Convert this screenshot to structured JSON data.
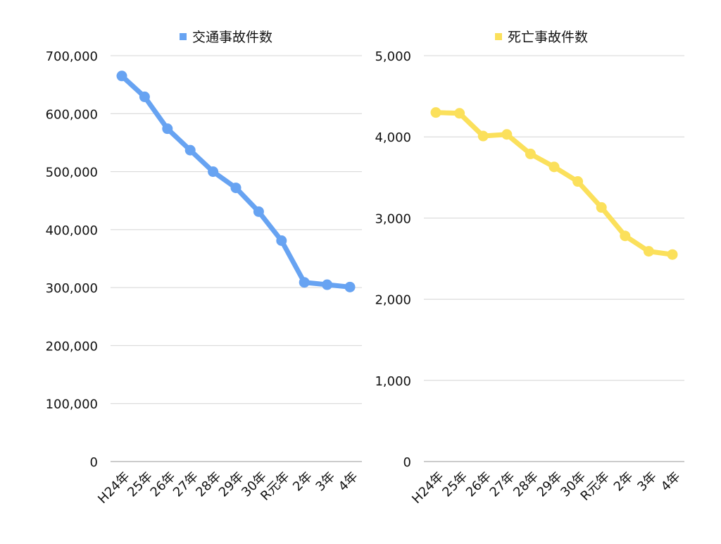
{
  "chart_data": [
    {
      "type": "line",
      "categories": [
        "H24年",
        "25年",
        "26年",
        "27年",
        "28年",
        "29年",
        "30年",
        "R元年",
        "2年",
        "3年",
        "4年"
      ],
      "series": [
        {
          "name": "交通事故件数",
          "color": "#67a3f2",
          "values": [
            665000,
            629000,
            574000,
            537000,
            500000,
            472000,
            431000,
            381000,
            309000,
            305000,
            301000
          ]
        }
      ],
      "yticks": [
        "0",
        "100,000",
        "200,000",
        "300,000",
        "400,000",
        "500,000",
        "600,000",
        "700,000"
      ],
      "ylim": [
        0,
        700000
      ],
      "grid": true,
      "legend": "top"
    },
    {
      "type": "line",
      "categories": [
        "H24年",
        "25年",
        "26年",
        "27年",
        "28年",
        "29年",
        "30年",
        "R元年",
        "2年",
        "3年",
        "4年"
      ],
      "series": [
        {
          "name": "死亡事故件数",
          "color": "#fbe05b",
          "values": [
            4300,
            4290,
            4010,
            4030,
            3790,
            3630,
            3450,
            3130,
            2780,
            2590,
            2550
          ]
        }
      ],
      "yticks": [
        "0",
        "1,000",
        "2,000",
        "3,000",
        "4,000",
        "5,000"
      ],
      "ylim": [
        0,
        5000
      ],
      "grid": true,
      "legend": "top"
    }
  ]
}
